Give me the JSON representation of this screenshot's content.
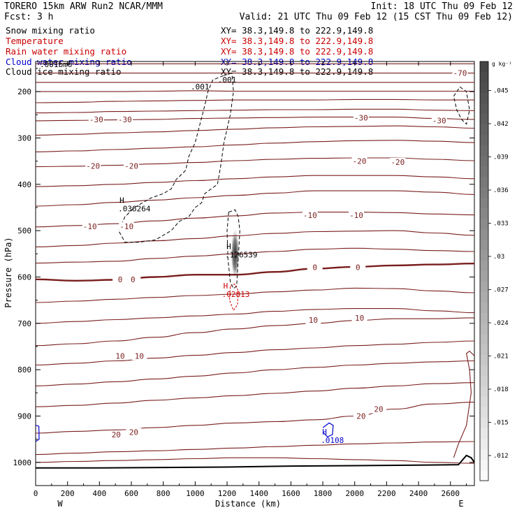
{
  "header": {
    "model": "TORERO  15km ARW   Run2    NCAR/MMM",
    "init": "Init: 18 UTC Thu 09 Feb 12",
    "fcst": "Fcst:     3 h",
    "valid": "Valid: 21 UTC Thu 09 Feb 12 (15 CST Thu 09 Feb 12)"
  },
  "legend": [
    {
      "label": "Snow mixing ratio",
      "xy": "XY=  38.3,149.8 to 222.9,149.8",
      "label_color": "#000000",
      "xy_color": "#000000"
    },
    {
      "label": "Temperature",
      "xy": "XY=  38.3,149.8 to 222.9,149.8",
      "label_color": "#cc0000",
      "xy_color": "#cc0000"
    },
    {
      "label": "Rain water mixing ratio",
      "xy": "XY=  38.3,149.8 to 222.9,149.8",
      "label_color": "#cc0000",
      "xy_color": "#cc0000"
    },
    {
      "label": "Cloud water mixing ratio",
      "xy": "XY=  38.3,149.8 to 222.9,149.8",
      "label_color": "#0000cc",
      "xy_color": "#0000cc"
    },
    {
      "label": "Cloud ice mixing ratio",
      "xy": "XY=  38.3,149.8 to 222.9,149.8",
      "label_color": "#000000",
      "xy_color": "#000000"
    }
  ],
  "overlap_text": ".001bm6",
  "colors": {
    "isotherm": "#7a1e1e",
    "freezing": "#7a1e1e",
    "rain": "#cc0000",
    "cloudwater": "#0000cc",
    "snow": "#000000",
    "ground": "#000000"
  },
  "chart_data": {
    "type": "contour",
    "xlabel": "Distance (km)",
    "ylabel": "Pressure (hPa)",
    "xlim": [
      0,
      2750
    ],
    "ylim": [
      1050,
      135
    ],
    "x_ticks": [
      0,
      200,
      400,
      600,
      800,
      1000,
      1200,
      1400,
      1600,
      1800,
      2000,
      2200,
      2400,
      2600
    ],
    "y_ticks": [
      200,
      300,
      400,
      500,
      600,
      700,
      800,
      900,
      1000
    ],
    "left_end": "W",
    "right_end": "E",
    "colorbar": {
      "unit": "g kg⁻¹",
      "ticks": [
        ".012",
        ".015",
        ".018",
        ".021",
        ".024",
        ".027",
        ".03",
        ".033",
        ".036",
        ".039",
        ".042",
        ".045"
      ]
    },
    "temperature_contour_labels": [
      {
        "text": "-70",
        "x": 2660,
        "p": 160
      },
      {
        "text": "-30",
        "x": 380,
        "p": 260
      },
      {
        "text": "-30",
        "x": 560,
        "p": 260
      },
      {
        "text": "-30",
        "x": 2040,
        "p": 256
      },
      {
        "text": "-30",
        "x": 2530,
        "p": 262
      },
      {
        "text": "-20",
        "x": 360,
        "p": 360
      },
      {
        "text": "-20",
        "x": 600,
        "p": 360
      },
      {
        "text": "-20",
        "x": 2030,
        "p": 350
      },
      {
        "text": "-20",
        "x": 2270,
        "p": 352
      },
      {
        "text": "-10",
        "x": 340,
        "p": 491
      },
      {
        "text": "-10",
        "x": 570,
        "p": 491
      },
      {
        "text": "-10",
        "x": 1720,
        "p": 467
      },
      {
        "text": "-10",
        "x": 2010,
        "p": 467
      },
      {
        "text": "0",
        "x": 530,
        "p": 605
      },
      {
        "text": "0",
        "x": 610,
        "p": 605
      },
      {
        "text": "0",
        "x": 1750,
        "p": 579
      },
      {
        "text": "0",
        "x": 2020,
        "p": 579
      },
      {
        "text": "10",
        "x": 530,
        "p": 770
      },
      {
        "text": "10",
        "x": 650,
        "p": 770
      },
      {
        "text": "10",
        "x": 1740,
        "p": 693
      },
      {
        "text": "10",
        "x": 2030,
        "p": 688
      },
      {
        "text": "20",
        "x": 505,
        "p": 940
      },
      {
        "text": "20",
        "x": 615,
        "p": 935
      },
      {
        "text": "20",
        "x": 2040,
        "p": 900
      },
      {
        "text": "20",
        "x": 2150,
        "p": 885
      }
    ],
    "maxima_labels": [
      {
        "symbol": "H",
        "value": ".036264",
        "x": 570,
        "p": 440,
        "series": "snow"
      },
      {
        "symbol": "H",
        "value": ".126539",
        "x": 1240,
        "p": 540,
        "series": "snow"
      },
      {
        "symbol": "H",
        "value": ".02813",
        "x": 1220,
        "p": 625,
        "series": "rain"
      },
      {
        "symbol": "H",
        "value": ".0108",
        "x": 1840,
        "p": 940,
        "series": "cloudwater"
      }
    ],
    "snow_contour_labels": [
      {
        "text": ".001",
        "x": 1200,
        "p": 180
      },
      {
        "text": ".001",
        "x": 1030,
        "p": 195
      }
    ],
    "isotherm_pressures_at_x": {
      "x": [
        0,
        250,
        500,
        750,
        1000,
        1250,
        1500,
        1750,
        2000,
        2250,
        2500,
        2750
      ],
      "lines": [
        [
          140,
          140,
          140,
          140,
          140,
          140,
          140,
          140,
          140,
          140,
          140,
          140
        ],
        [
          160,
          160,
          160,
          160,
          160,
          160,
          160,
          160,
          160,
          160,
          160,
          160
        ],
        [
          180,
          180,
          180,
          180,
          180,
          180,
          180,
          180,
          180,
          180,
          180,
          180
        ],
        [
          200,
          200,
          200,
          199,
          198,
          199,
          199,
          199,
          199,
          199,
          199,
          199
        ],
        [
          224,
          223,
          221,
          220,
          219,
          218,
          218,
          218,
          217,
          217,
          218,
          218
        ],
        [
          246,
          245,
          243,
          242,
          241,
          240,
          239,
          239,
          238,
          238,
          240,
          241
        ],
        [
          263,
          262,
          261,
          260,
          258,
          257,
          256,
          255,
          255,
          255,
          258,
          260
        ],
        [
          294,
          292,
          289,
          287,
          284,
          281,
          278,
          276,
          275,
          274,
          276,
          279
        ],
        [
          330,
          328,
          325,
          322,
          319,
          315,
          311,
          308,
          306,
          305,
          307,
          310
        ],
        [
          362,
          361,
          359,
          356,
          353,
          349,
          346,
          344,
          343,
          343,
          346,
          349
        ],
        [
          405,
          403,
          400,
          396,
          392,
          388,
          384,
          381,
          381,
          381,
          384,
          388
        ],
        [
          447,
          444,
          439,
          434,
          429,
          424,
          419,
          414,
          414,
          414,
          417,
          422
        ],
        [
          492,
          489,
          485,
          479,
          473,
          468,
          462,
          460,
          460,
          461,
          464,
          466
        ],
        [
          535,
          532,
          527,
          522,
          517,
          511,
          506,
          502,
          501,
          500,
          505,
          510
        ],
        [
          570,
          568,
          566,
          560,
          555,
          550,
          545,
          540,
          538,
          540,
          543,
          545
        ],
        [
          605,
          608,
          606,
          600,
          595,
          595,
          589,
          582,
          578,
          575,
          573,
          571
        ],
        [
          655,
          652,
          648,
          644,
          640,
          637,
          632,
          628,
          624,
          625,
          630,
          634
        ],
        [
          700,
          696,
          692,
          688,
          684,
          680,
          674,
          670,
          668,
          668,
          673,
          677
        ],
        [
          748,
          744,
          738,
          730,
          720,
          712,
          705,
          700,
          694,
          690,
          690,
          688
        ],
        [
          790,
          786,
          781,
          775,
          769,
          763,
          757,
          753,
          748,
          745,
          741,
          738
        ],
        [
          835,
          831,
          826,
          820,
          814,
          807,
          800,
          795,
          790,
          786,
          783,
          781
        ],
        [
          880,
          877,
          872,
          866,
          861,
          856,
          851,
          846,
          840,
          835,
          830,
          828
        ],
        [
          937,
          933,
          930,
          925,
          920,
          915,
          912,
          908,
          900,
          885,
          874,
          870
        ],
        [
          983,
          980,
          977,
          975,
          972,
          969,
          966,
          963,
          960,
          958,
          956,
          955
        ],
        [
          1000,
          998,
          996,
          994,
          992,
          990,
          990,
          992,
          994,
          996,
          1000,
          1002
        ]
      ]
    }
  }
}
